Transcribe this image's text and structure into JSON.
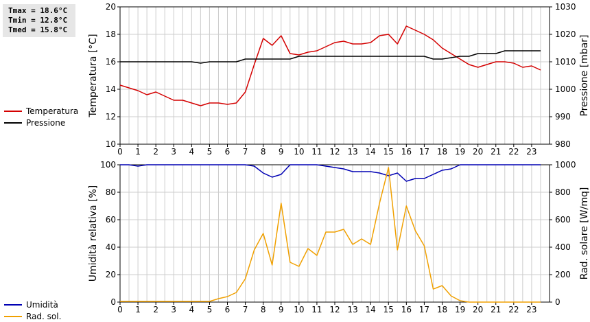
{
  "stats": {
    "tmax": "Tmax = 18.6°C",
    "tmin": "Tmin = 12.8°C",
    "tmed": "Tmed = 15.8°C"
  },
  "colors": {
    "red": "#d40000",
    "black": "#000000",
    "blue": "#0000b4",
    "orange": "#f0a000",
    "grid": "#cccccc"
  },
  "chart_data": [
    {
      "type": "line",
      "xlim": [
        0,
        24
      ],
      "x_ticks": [
        "0",
        "1",
        "2",
        "3",
        "4",
        "5",
        "6",
        "7",
        "8",
        "9",
        "10",
        "11",
        "12",
        "13",
        "14",
        "15",
        "16",
        "17",
        "18",
        "19",
        "20",
        "21",
        "22",
        "23"
      ],
      "y_left": {
        "label": "Temperatura [°C]",
        "lim": [
          10,
          20
        ],
        "ticks": [
          "10",
          "12",
          "14",
          "16",
          "18",
          "20"
        ]
      },
      "y_right": {
        "label": "Pressione [mbar]",
        "lim": [
          980,
          1030
        ],
        "ticks": [
          "980",
          "990",
          "1000",
          "1010",
          "1020",
          "1030"
        ]
      },
      "grid": true,
      "series": [
        {
          "name": "Temperatura",
          "axis": "left",
          "color": "#d40000",
          "x": [
            0,
            0.5,
            1,
            1.5,
            2,
            2.5,
            3,
            3.5,
            4,
            4.5,
            5,
            5.5,
            6,
            6.5,
            7,
            7.5,
            8,
            8.5,
            9,
            9.5,
            10,
            10.5,
            11,
            11.5,
            12,
            12.5,
            13,
            13.5,
            14,
            14.5,
            15,
            15.5,
            16,
            16.5,
            17,
            17.5,
            18,
            18.5,
            19,
            19.5,
            20,
            20.5,
            21,
            21.5,
            22,
            22.5,
            23,
            23.5
          ],
          "y": [
            14.3,
            14.1,
            13.9,
            13.6,
            13.8,
            13.5,
            13.2,
            13.2,
            13.0,
            12.8,
            13.0,
            13.0,
            12.9,
            13.0,
            13.8,
            15.8,
            17.7,
            17.2,
            17.9,
            16.6,
            16.5,
            16.7,
            16.8,
            17.1,
            17.4,
            17.5,
            17.3,
            17.3,
            17.4,
            17.9,
            18.0,
            17.3,
            18.6,
            18.3,
            18.0,
            17.6,
            17.0,
            16.6,
            16.2,
            15.8,
            15.6,
            15.8,
            16.0,
            16.0,
            15.9,
            15.6,
            15.7,
            15.4
          ]
        },
        {
          "name": "Pressione",
          "axis": "right",
          "color": "#000000",
          "x": [
            0,
            1,
            2,
            3,
            4,
            4.5,
            5,
            6,
            6.5,
            7,
            8,
            9,
            9.5,
            10,
            11,
            12,
            13,
            14,
            15,
            16,
            17,
            17.5,
            18,
            18.5,
            19,
            19.5,
            20,
            21,
            21.5,
            22,
            23,
            23.5
          ],
          "y": [
            1010,
            1010,
            1010,
            1010,
            1010,
            1009.5,
            1010,
            1010,
            1010,
            1011,
            1011,
            1011,
            1011,
            1012,
            1012,
            1012,
            1012,
            1012,
            1012,
            1012,
            1012,
            1011,
            1011,
            1011.5,
            1012,
            1012,
            1013,
            1013,
            1014,
            1014,
            1014,
            1014
          ]
        }
      ]
    },
    {
      "type": "line",
      "xlim": [
        0,
        24
      ],
      "x_ticks": [
        "0",
        "1",
        "2",
        "3",
        "4",
        "5",
        "6",
        "7",
        "8",
        "9",
        "10",
        "11",
        "12",
        "13",
        "14",
        "15",
        "16",
        "17",
        "18",
        "19",
        "20",
        "21",
        "22",
        "23"
      ],
      "y_left": {
        "label": "Umidità relativa [%]",
        "lim": [
          0,
          100
        ],
        "ticks": [
          "0",
          "20",
          "40",
          "60",
          "80",
          "100"
        ]
      },
      "y_right": {
        "label": "Rad. solare [W/mq]",
        "lim": [
          0,
          1000
        ],
        "ticks": [
          "0",
          "200",
          "400",
          "600",
          "800",
          "1000"
        ]
      },
      "grid": true,
      "series": [
        {
          "name": "Umidità",
          "axis": "left",
          "color": "#0000b4",
          "x": [
            0,
            0.5,
            1,
            1.5,
            7,
            7.5,
            8,
            8.5,
            9,
            9.5,
            11,
            11.5,
            12,
            12.5,
            13,
            13.5,
            14,
            14.5,
            15,
            15.5,
            16,
            16.5,
            17,
            17.5,
            18,
            18.5,
            19,
            19.5,
            23.5
          ],
          "y": [
            100,
            100,
            99,
            100,
            100,
            99,
            94,
            91,
            93,
            100,
            100,
            99,
            98,
            97,
            95,
            95,
            95,
            94,
            92,
            94,
            88,
            90,
            90,
            93,
            96,
            97,
            100,
            100,
            100
          ]
        },
        {
          "name": "Rad. sol.",
          "axis": "right",
          "color": "#f0a000",
          "x": [
            0,
            0.5,
            1,
            1.5,
            2,
            2.5,
            3,
            3.5,
            4,
            4.5,
            5,
            5.5,
            6,
            6.5,
            7,
            7.5,
            8,
            8.5,
            9,
            9.5,
            10,
            10.5,
            11,
            11.5,
            12,
            12.5,
            13,
            13.5,
            14,
            14.5,
            15,
            15.5,
            16,
            16.5,
            17,
            17.5,
            18,
            18.5,
            19,
            19.5,
            20,
            20.5,
            21,
            21.5,
            22,
            22.5,
            23,
            23.5
          ],
          "y": [
            5,
            5,
            5,
            5,
            5,
            5,
            5,
            5,
            5,
            5,
            5,
            25,
            40,
            70,
            170,
            380,
            500,
            270,
            720,
            290,
            260,
            390,
            340,
            510,
            510,
            530,
            420,
            460,
            420,
            720,
            980,
            380,
            700,
            520,
            410,
            95,
            120,
            45,
            10,
            0,
            0,
            0,
            0,
            0,
            0,
            0,
            0,
            0
          ]
        }
      ]
    }
  ]
}
